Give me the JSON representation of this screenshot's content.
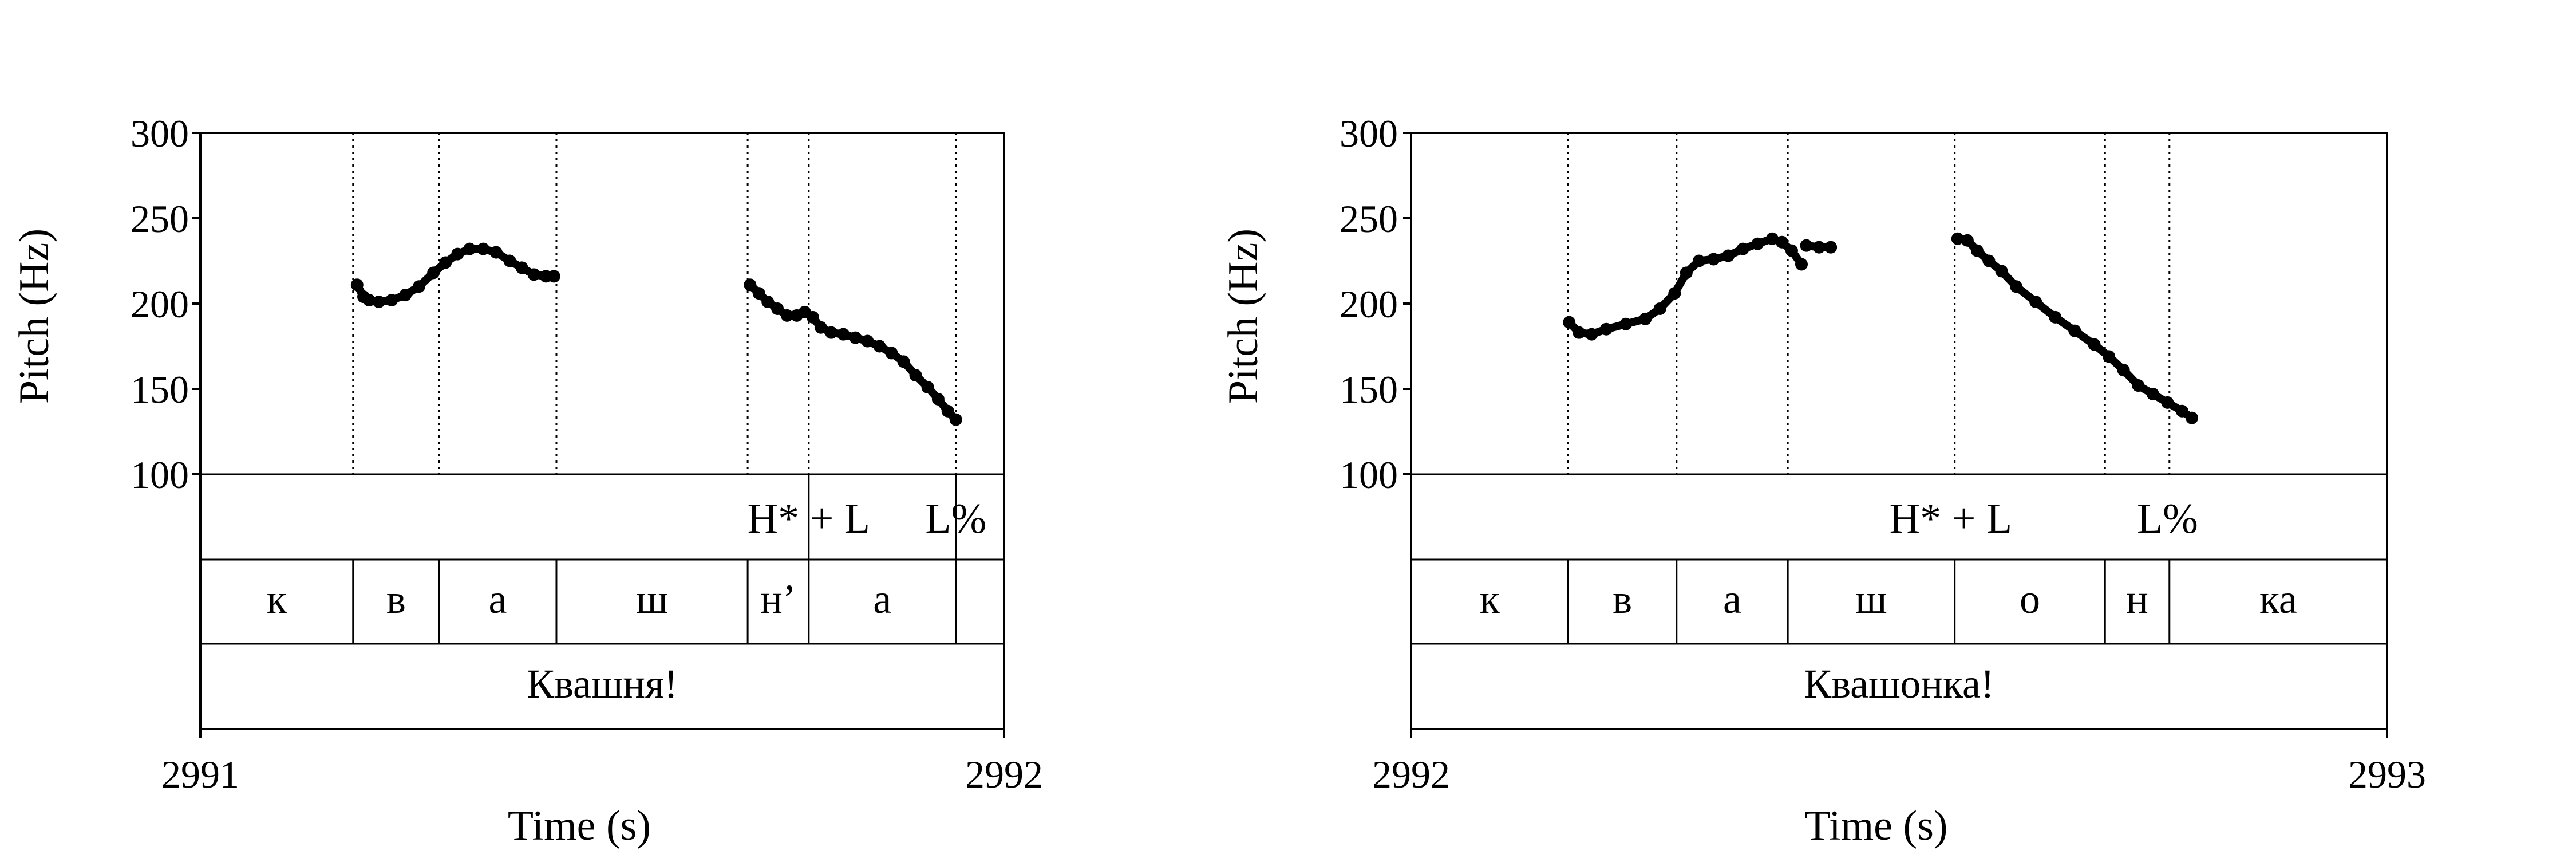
{
  "chart_data": [
    {
      "type": "scatter",
      "xlabel": "Time (s)",
      "ylabel": "Pitch (Hz)",
      "xlim": [
        2991,
        2992
      ],
      "ylim": [
        100,
        300
      ],
      "yticks": [
        "100",
        "150",
        "200",
        "250",
        "300"
      ],
      "xticks": [
        "2991",
        "2992"
      ],
      "tone_labels": [
        {
          "text": "H* + L",
          "t": 2991.757
        },
        {
          "text": "L%",
          "t": 2991.94
        }
      ],
      "tone_marks": [
        2991.757,
        2991.94
      ],
      "segments": [
        {
          "text": "к",
          "start": 2991.0,
          "end": 2991.19
        },
        {
          "text": "в",
          "start": 2991.19,
          "end": 2991.297
        },
        {
          "text": "а",
          "start": 2991.297,
          "end": 2991.443
        },
        {
          "text": "ш",
          "start": 2991.443,
          "end": 2991.681
        },
        {
          "text": "н’",
          "start": 2991.681,
          "end": 2991.757
        },
        {
          "text": "а",
          "start": 2991.757,
          "end": 2991.94
        },
        {
          "text": "",
          "start": 2991.94,
          "end": 2992.0
        }
      ],
      "word": "Квашня!",
      "pitch_runs": [
        [
          [
            2991.195,
            211
          ],
          [
            2991.203,
            204
          ],
          [
            2991.21,
            202
          ],
          [
            2991.222,
            201
          ],
          [
            2991.238,
            202
          ],
          [
            2991.255,
            205
          ],
          [
            2991.272,
            210
          ],
          [
            2991.29,
            218
          ],
          [
            2991.305,
            224
          ],
          [
            2991.32,
            229
          ],
          [
            2991.335,
            232
          ],
          [
            2991.352,
            232
          ],
          [
            2991.368,
            230
          ],
          [
            2991.385,
            225
          ],
          [
            2991.4,
            221
          ],
          [
            2991.415,
            217
          ],
          [
            2991.43,
            216
          ],
          [
            2991.44,
            216
          ]
        ],
        [
          [
            2991.684,
            211
          ],
          [
            2991.695,
            206
          ],
          [
            2991.706,
            201
          ],
          [
            2991.718,
            197
          ],
          [
            2991.73,
            193
          ],
          [
            2991.742,
            193
          ],
          [
            2991.752,
            195
          ],
          [
            2991.762,
            192
          ],
          [
            2991.772,
            186
          ],
          [
            2991.785,
            183
          ],
          [
            2991.8,
            182
          ],
          [
            2991.815,
            180
          ],
          [
            2991.83,
            178
          ],
          [
            2991.845,
            175
          ],
          [
            2991.86,
            171
          ],
          [
            2991.875,
            166
          ],
          [
            2991.89,
            158
          ],
          [
            2991.905,
            151
          ],
          [
            2991.918,
            144
          ],
          [
            2991.93,
            137
          ],
          [
            2991.94,
            132
          ]
        ]
      ]
    },
    {
      "type": "scatter",
      "xlabel": "Time (s)",
      "ylabel": "Pitch (Hz)",
      "xlim": [
        2992,
        2993
      ],
      "ylim": [
        100,
        300
      ],
      "yticks": [
        "100",
        "150",
        "200",
        "250",
        "300"
      ],
      "xticks": [
        "2992",
        "2993"
      ],
      "tone_labels": [
        {
          "text": "H* + L",
          "t": 2992.553
        },
        {
          "text": "L%",
          "t": 2992.775
        }
      ],
      "tone_marks": [],
      "segments": [
        {
          "text": "к",
          "start": 2992.0,
          "end": 2992.161
        },
        {
          "text": "в",
          "start": 2992.161,
          "end": 2992.272
        },
        {
          "text": "а",
          "start": 2992.272,
          "end": 2992.386
        },
        {
          "text": "ш",
          "start": 2992.386,
          "end": 2992.557
        },
        {
          "text": "о",
          "start": 2992.557,
          "end": 2992.711
        },
        {
          "text": "н",
          "start": 2992.711,
          "end": 2992.777
        },
        {
          "text": "ка",
          "start": 2992.777,
          "end": 2993.0
        }
      ],
      "word": "Квашонка!",
      "pitch_runs": [
        [
          [
            2992.162,
            189
          ],
          [
            2992.172,
            183
          ],
          [
            2992.185,
            182
          ],
          [
            2992.2,
            185
          ],
          [
            2992.22,
            188
          ],
          [
            2992.24,
            191
          ],
          [
            2992.255,
            197
          ],
          [
            2992.27,
            206
          ],
          [
            2992.282,
            218
          ],
          [
            2992.295,
            225
          ],
          [
            2992.31,
            226
          ],
          [
            2992.325,
            228
          ],
          [
            2992.34,
            232
          ],
          [
            2992.355,
            235
          ],
          [
            2992.37,
            238
          ],
          [
            2992.38,
            236
          ],
          [
            2992.39,
            231
          ],
          [
            2992.4,
            223
          ]
        ],
        [
          [
            2992.405,
            234
          ],
          [
            2992.418,
            233
          ],
          [
            2992.43,
            233
          ]
        ],
        [
          [
            2992.56,
            238
          ],
          [
            2992.57,
            237
          ],
          [
            2992.58,
            231
          ],
          [
            2992.592,
            225
          ],
          [
            2992.605,
            219
          ],
          [
            2992.62,
            210
          ],
          [
            2992.64,
            201
          ],
          [
            2992.66,
            192
          ],
          [
            2992.68,
            184
          ],
          [
            2992.7,
            176
          ],
          [
            2992.715,
            169
          ],
          [
            2992.73,
            161
          ],
          [
            2992.745,
            152
          ],
          [
            2992.76,
            147
          ],
          [
            2992.775,
            142
          ],
          [
            2992.79,
            137
          ],
          [
            2992.8,
            133
          ]
        ]
      ]
    }
  ]
}
